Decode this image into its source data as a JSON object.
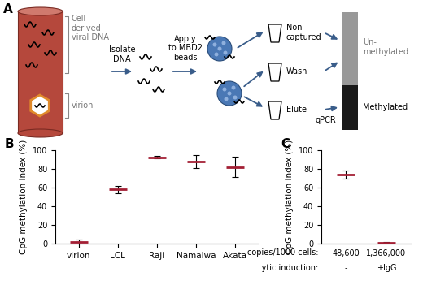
{
  "panel_labels": [
    "A",
    "B",
    "C"
  ],
  "diagram": {
    "cell_label": "Cell-\nderived\nviral DNA",
    "virion_label": "virion",
    "steps": [
      "Isolate\nDNA",
      "Apply\nto MBD2\nbeads"
    ],
    "fractions": [
      "Non-\ncaptured",
      "Wash",
      "Elute"
    ],
    "assay": "qPCR",
    "bar_labels": [
      "Un-\nmethylated",
      "Methylated"
    ]
  },
  "chart_data": [
    {
      "type": "scatter",
      "categories": [
        "virion",
        "LCL",
        "Raji",
        "Namalwa",
        "Akata"
      ],
      "values": [
        2,
        58,
        92.5,
        88,
        82
      ],
      "errors": [
        2,
        4,
        1.5,
        7,
        11
      ],
      "y_label": "CpG methylation index (%)",
      "ylim": [
        0,
        100
      ],
      "yticks": [
        0,
        20,
        40,
        60,
        80,
        100
      ],
      "color": "#a31f34",
      "marker": "hline"
    },
    {
      "type": "scatter",
      "categories": [
        null,
        null
      ],
      "values": [
        74,
        1
      ],
      "errors": [
        4,
        1
      ],
      "y_label": "CpG methylation index (%)",
      "ylim": [
        0,
        100
      ],
      "yticks": [
        0,
        20,
        40,
        60,
        80,
        100
      ],
      "color": "#a31f34",
      "marker": "hline",
      "tick_labels": "y",
      "annotations": [
        {
          "label": "copies/1000 cells:",
          "texts": [
            "48,600",
            "1,366,000"
          ]
        },
        {
          "label": "Lytic induction:",
          "texts": [
            "-",
            "+IgG"
          ]
        }
      ]
    }
  ]
}
